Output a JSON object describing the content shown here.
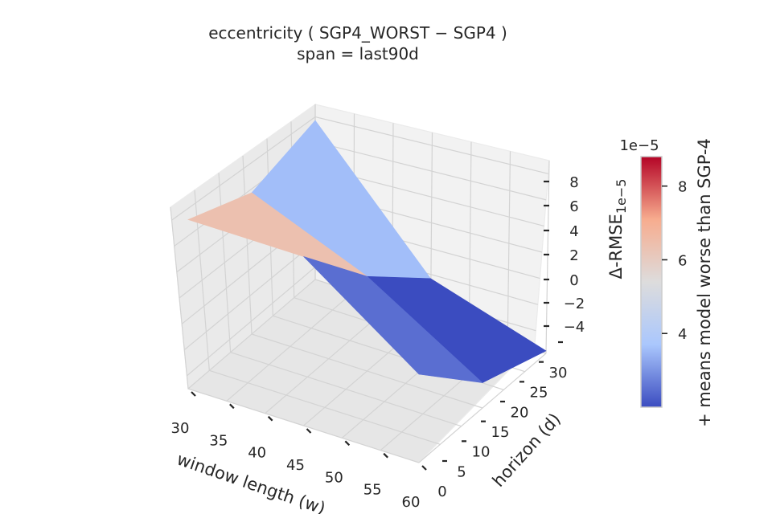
{
  "chart_data": {
    "type": "surface3d",
    "title": "eccentricity  ( SGP4_WORST − SGP4 )",
    "subtitle": "span = last90d",
    "xlabel": "window length (w)",
    "ylabel": "horizon (d)",
    "zlabel": "Δ-RMSE",
    "z_scale_label": "1e−5",
    "x_ticks": [
      "30",
      "35",
      "40",
      "45",
      "50",
      "55",
      "60"
    ],
    "y_ticks": [
      "0",
      "5",
      "10",
      "15",
      "20",
      "25",
      "30"
    ],
    "z_ticks": [
      "−4",
      "−2",
      "0",
      "2",
      "4",
      "6",
      "8"
    ],
    "xlim": [
      30,
      60
    ],
    "ylim": [
      0,
      30
    ],
    "zlim": [
      -5,
      9
    ],
    "surface": {
      "x": [
        30,
        45,
        60
      ],
      "y": [
        0,
        15,
        30
      ],
      "z": [
        [
          8.4,
          8.4,
          2.0
        ],
        [
          6.2,
          2.5,
          -3.0
        ],
        [
          7.6,
          -2.0,
          -4.8
        ]
      ]
    },
    "colorbar": {
      "label": "+ means model worse than SGP-4",
      "scale_label": "1e−5",
      "ticks": [
        "4",
        "6",
        "8"
      ],
      "range": [
        2.0,
        8.8
      ],
      "colormap": "coolwarm",
      "colors": [
        "#3b4cc0",
        "#aac7fd",
        "#dddcdc",
        "#f7ac8e",
        "#b40426"
      ]
    }
  }
}
